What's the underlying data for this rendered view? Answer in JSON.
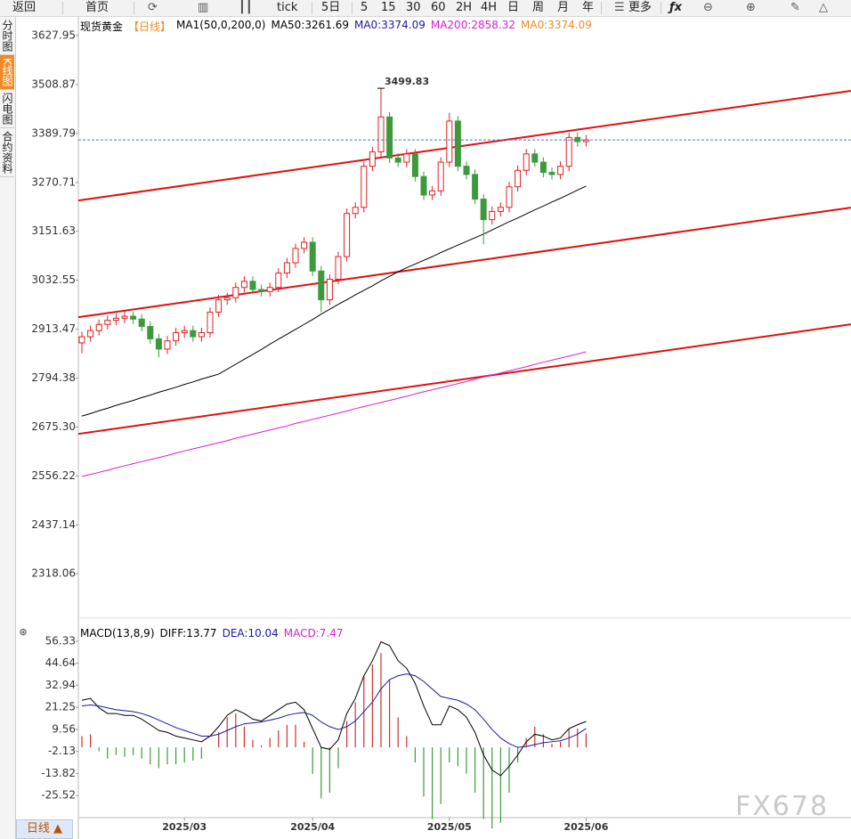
{
  "toolbar": [
    "返回",
    "首页",
    "tick",
    "5日",
    "5",
    "15",
    "30",
    "60",
    "2H",
    "4H",
    "日",
    "周",
    "月",
    "年",
    "更多"
  ],
  "side_tabs": [
    "分时图",
    "K线图",
    "闪电图",
    "合约资料"
  ],
  "period_button": "日线 ▲",
  "watermark": "FX678",
  "chart_data": [
    {
      "type": "candlestick",
      "title": "现货黄金",
      "period": "【日线】",
      "header": [
        {
          "text": "MA1(50,0,200,0)",
          "color": "#000000"
        },
        {
          "text": "MA50:3261.69",
          "color": "#000000"
        },
        {
          "text": "MA0:3374.09",
          "color": "#1a1a9a"
        },
        {
          "text": "MA200:2858.32",
          "color": "#d81ed8"
        },
        {
          "text": "MA0:3374.09",
          "color": "#f08a24"
        }
      ],
      "categories": [
        null,
        null,
        null,
        null,
        null,
        null,
        null,
        null,
        null,
        null,
        null,
        null,
        "2025/03",
        null,
        null,
        null,
        null,
        null,
        null,
        null,
        null,
        null,
        null,
        null,
        null,
        null,
        null,
        "2025/04",
        null,
        null,
        null,
        null,
        null,
        null,
        null,
        null,
        null,
        null,
        null,
        null,
        null,
        null,
        null,
        "2025/05",
        null,
        null,
        null,
        null,
        null,
        null,
        null,
        null,
        null,
        null,
        null,
        null,
        null,
        null,
        null,
        "2025/06"
      ],
      "open": [
        2880,
        2895,
        2910,
        2925,
        2935,
        2940,
        2945,
        2938,
        2920,
        2890,
        2865,
        2885,
        2905,
        2910,
        2895,
        2905,
        2955,
        2985,
        2990,
        3015,
        3030,
        3010,
        3005,
        3015,
        3050,
        3075,
        3110,
        3125,
        3055,
        2985,
        3035,
        3090,
        3195,
        3210,
        3310,
        3345,
        3430,
        3330,
        3320,
        3340,
        3285,
        3240,
        3250,
        3320,
        3420,
        3310,
        3290,
        3230,
        3180,
        3200,
        3210,
        3260,
        3300,
        3340,
        3320,
        3295,
        3290,
        3310,
        3380,
        3370
      ],
      "high": [
        2907,
        2922,
        2937,
        2947,
        2952,
        2957,
        2957,
        2950,
        2932,
        2902,
        2897,
        2917,
        2922,
        2922,
        2917,
        2967,
        2997,
        3002,
        3027,
        3042,
        3042,
        3022,
        3027,
        3062,
        3087,
        3122,
        3137,
        3137,
        3067,
        3047,
        3102,
        3207,
        3222,
        3322,
        3357,
        3499.83,
        3442,
        3342,
        3352,
        3352,
        3297,
        3262,
        3332,
        3440,
        3432,
        3322,
        3302,
        3242,
        3212,
        3222,
        3272,
        3312,
        3352,
        3352,
        3332,
        3307,
        3322,
        3392,
        3392,
        3386
      ],
      "low": [
        2855,
        2883,
        2898,
        2913,
        2923,
        2928,
        2926,
        2908,
        2878,
        2845,
        2853,
        2873,
        2893,
        2883,
        2883,
        2893,
        2943,
        2973,
        2978,
        3003,
        2998,
        2993,
        2993,
        3003,
        3038,
        3063,
        3098,
        3043,
        2955,
        2973,
        3023,
        3078,
        3183,
        3198,
        3298,
        3333,
        3318,
        3308,
        3308,
        3273,
        3228,
        3228,
        3238,
        3308,
        3298,
        3278,
        3218,
        3120,
        3168,
        3188,
        3198,
        3248,
        3288,
        3308,
        3283,
        3278,
        3278,
        3298,
        3358,
        3358
      ],
      "close": [
        2895,
        2910,
        2925,
        2935,
        2940,
        2945,
        2938,
        2920,
        2890,
        2865,
        2885,
        2905,
        2910,
        2895,
        2905,
        2955,
        2985,
        2990,
        3015,
        3030,
        3010,
        3005,
        3015,
        3050,
        3075,
        3110,
        3125,
        3055,
        2985,
        3035,
        3090,
        3195,
        3210,
        3310,
        3345,
        3430,
        3330,
        3320,
        3340,
        3285,
        3240,
        3250,
        3320,
        3420,
        3310,
        3290,
        3230,
        3180,
        3200,
        3210,
        3260,
        3300,
        3340,
        3320,
        3295,
        3290,
        3310,
        3380,
        3370,
        3374.09
      ],
      "up_color": "#e02020",
      "down_color": "#3c9a3c",
      "series": [
        {
          "color": "#000000",
          "values": [
            2702,
            2708,
            2715,
            2721,
            2728,
            2734,
            2740,
            2747,
            2753,
            2760,
            2766,
            2772,
            2779,
            2785,
            2792,
            2798,
            2804,
            2816,
            2828,
            2840,
            2852,
            2864,
            2877,
            2889,
            2901,
            2913,
            2925,
            2937,
            2950,
            2962,
            2974,
            2985,
            2997,
            3008,
            3019,
            3031,
            3042,
            3053,
            3063,
            3072,
            3081,
            3090,
            3100,
            3109,
            3118,
            3127,
            3136,
            3145,
            3155,
            3165,
            3175,
            3184,
            3194,
            3204,
            3213,
            3223,
            3232,
            3242,
            3252,
            3261.69
          ]
        },
        {
          "color": "#d81ed8",
          "values": [
            2555,
            2560,
            2565,
            2570,
            2576,
            2581,
            2586,
            2591,
            2596,
            2601,
            2606,
            2612,
            2617,
            2622,
            2627,
            2632,
            2637,
            2642,
            2648,
            2653,
            2658,
            2663,
            2668,
            2673,
            2678,
            2684,
            2689,
            2694,
            2699,
            2704,
            2709,
            2714,
            2720,
            2725,
            2730,
            2735,
            2740,
            2745,
            2750,
            2756,
            2761,
            2766,
            2771,
            2776,
            2781,
            2786,
            2792,
            2797,
            2802,
            2807,
            2812,
            2817,
            2822,
            2828,
            2833,
            2838,
            2843,
            2848,
            2853,
            2858.32
          ]
        }
      ],
      "trendlines": [
        {
          "start": 3226.7,
          "end": 3493.5,
          "color": "#e01010"
        },
        {
          "start": 2942.6,
          "end": 3209.4,
          "color": "#e01010"
        },
        {
          "start": 2658.5,
          "end": 2925.3,
          "color": "#e01010"
        }
      ],
      "ylim": [
        2218.8,
        3638.8
      ],
      "yticks": [
        {
          "value": 3627.95,
          "label": "3627.95"
        },
        {
          "value": 3508.87,
          "label": "3508.87"
        },
        {
          "value": 3389.79,
          "label": "3389.79"
        },
        {
          "value": 3270.71,
          "label": "3270.71"
        },
        {
          "value": 3151.63,
          "label": "3151.63"
        },
        {
          "value": 3032.55,
          "label": "3032.55"
        },
        {
          "value": 2913.47,
          "label": "2913.47"
        },
        {
          "value": 2794.38,
          "label": "2794.38"
        },
        {
          "value": 2675.3,
          "label": "2675.30"
        },
        {
          "value": 2556.22,
          "label": "2556.22"
        },
        {
          "value": 2437.14,
          "label": "2437.14"
        },
        {
          "value": 2318.06,
          "label": "2318.06"
        }
      ]
    },
    {
      "type": "macd",
      "title": "MACD(13,8,9)",
      "header": [
        {
          "text": "DIFF:13.77",
          "color": "#000000"
        },
        {
          "text": "DEA:10.04",
          "color": "#1a1a9a"
        },
        {
          "text": "MACD:7.47",
          "color": "#d81ed8"
        }
      ],
      "series": [
        {
          "color": "#000000",
          "values": [
            25,
            26,
            21,
            18,
            18,
            17,
            17,
            15,
            12,
            9,
            8,
            6,
            5,
            4,
            3,
            6,
            11,
            17,
            20,
            18,
            15,
            14,
            17,
            20,
            23,
            24,
            20,
            10,
            0,
            -1,
            4,
            18,
            26,
            38,
            46,
            56,
            54,
            46,
            42,
            34,
            22,
            12,
            12,
            22,
            20,
            16,
            8,
            -4,
            -12,
            -15,
            -10,
            -4,
            3,
            7,
            6,
            4,
            5,
            10,
            12,
            13.77
          ]
        },
        {
          "color": "#1a1a9a",
          "values": [
            22,
            22.5,
            22,
            21,
            20,
            19.5,
            19,
            18,
            16.5,
            14.5,
            12.5,
            10.5,
            9,
            7.5,
            6,
            6,
            7,
            9,
            11,
            12.5,
            13,
            13.5,
            14.5,
            15.5,
            17,
            18,
            18.5,
            17,
            13.5,
            11,
            9.5,
            11,
            14,
            19,
            24,
            31,
            36,
            38,
            39,
            38,
            35,
            31,
            27,
            26,
            25,
            23,
            20,
            15,
            9.5,
            5,
            2,
            0,
            0.5,
            1.5,
            2.5,
            3,
            3.5,
            5,
            7,
            10.04
          ]
        }
      ],
      "histogram": [
        6,
        7,
        -2,
        -6,
        -4,
        -5,
        -4,
        -6,
        -9,
        -11,
        -9,
        -9,
        -8,
        -7,
        -6,
        0,
        8,
        16,
        18,
        11,
        4,
        1,
        5,
        9,
        12,
        12,
        3,
        -14,
        -27,
        -24,
        -11,
        14,
        24,
        38,
        44,
        50,
        36,
        16,
        6,
        -8,
        -26,
        -38,
        -30,
        -8,
        -10,
        -14,
        -24,
        -38,
        -43,
        -40,
        -24,
        -8,
        5,
        11,
        7,
        2,
        3,
        10,
        10,
        7.47
      ],
      "up_color": "#d03030",
      "down_color": "#3c9a3c",
      "ylim": [
        -38.2,
        63.4
      ],
      "yticks": [
        56.33,
        44.64,
        32.94,
        21.25,
        9.56,
        -2.13,
        -13.82,
        -25.52
      ]
    }
  ]
}
